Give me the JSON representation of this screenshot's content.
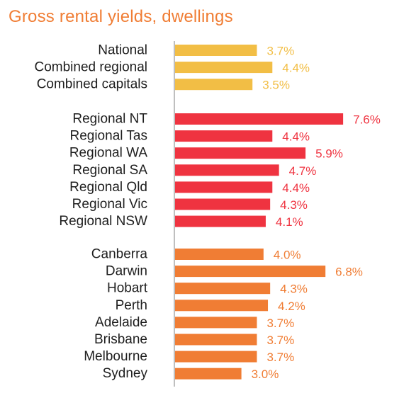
{
  "chart_data": {
    "type": "bar",
    "orientation": "horizontal",
    "title": "Gross rental yields, dwellings",
    "xlabel": "",
    "ylabel": "",
    "value_suffix": "%",
    "xlim": [
      0,
      8.2
    ],
    "grid": false,
    "legend": "none",
    "groups": [
      {
        "color": "#F2BE45",
        "categories": [
          "National",
          "Combined regional",
          "Combined capitals"
        ],
        "values": [
          3.7,
          4.4,
          3.5
        ],
        "labels": [
          "3.7%",
          "4.4%",
          "3.5%"
        ]
      },
      {
        "color": "#EF3340",
        "categories": [
          "Regional NT",
          "Regional Tas",
          "Regional WA",
          "Regional SA",
          "Regional Qld",
          "Regional Vic",
          "Regional NSW"
        ],
        "values": [
          7.6,
          4.4,
          5.9,
          4.7,
          4.4,
          4.3,
          4.1
        ],
        "labels": [
          "7.6%",
          "4.4%",
          "5.9%",
          "4.7%",
          "4.4%",
          "4.3%",
          "4.1%"
        ]
      },
      {
        "color": "#F07D34",
        "categories": [
          "Canberra",
          "Darwin",
          "Hobart",
          "Perth",
          "Adelaide",
          "Brisbane",
          "Melbourne",
          "Sydney"
        ],
        "values": [
          4.0,
          6.8,
          4.3,
          4.2,
          3.7,
          3.7,
          3.7,
          3.0
        ],
        "labels": [
          "4.0%",
          "6.8%",
          "4.3%",
          "4.2%",
          "3.7%",
          "3.7%",
          "3.7%",
          "3.0%"
        ]
      }
    ],
    "axis_color": "#BFBFBF",
    "label_color": "#1e1e1e",
    "title_color": "#F07D34"
  }
}
